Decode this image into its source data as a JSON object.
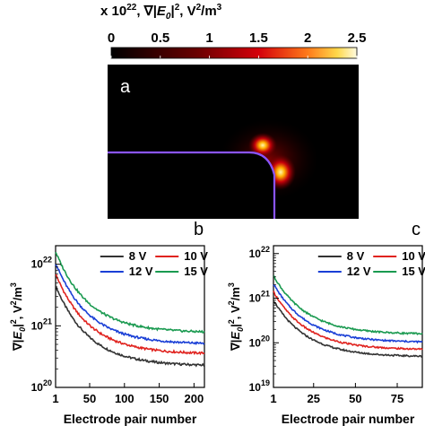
{
  "heatmap": {
    "title_prefix": "x 10",
    "title_exp": "22",
    "title_mid": ", ∇|",
    "title_E": "E",
    "title_sub": "0",
    "title_bar": "|",
    "title_exp2": "2",
    "title_unit": ", V",
    "title_exp3": "2",
    "title_unit2": "/m",
    "title_exp4": "3",
    "colorbar_ticks": [
      "0",
      "0.5",
      "1",
      "1.5",
      "2",
      "2.5"
    ],
    "colorbar_range": [
      0,
      2.5
    ],
    "colors": {
      "low": "#000000",
      "mid": "#d4000b",
      "high": "#fff3a0",
      "edge": "#8a55ff"
    },
    "panel_label": "a"
  },
  "chart_data": [
    {
      "type": "line",
      "panel_label": "b",
      "ylabel": "∇|E0|², V²/m³",
      "xlabel": "Electrode pair number",
      "yscale": "log",
      "xlim": [
        1,
        215
      ],
      "ylim": [
        1e+20,
        2e+22
      ],
      "xticks": [
        "1",
        "50",
        "100",
        "150",
        "200"
      ],
      "xtick_values": [
        1,
        50,
        100,
        150,
        200
      ],
      "yticks": [
        "10^20",
        "10^21",
        "10^22"
      ],
      "legend": "top-right",
      "series": [
        {
          "name": "8 V",
          "color": "#333333",
          "y1": 4.5e+21,
          "yend": 2.3e+20
        },
        {
          "name": "10 V",
          "color": "#e0231f",
          "y1": 7e+21,
          "yend": 3.6e+20
        },
        {
          "name": "12 V",
          "color": "#1a3fd6",
          "y1": 1.05e+22,
          "yend": 5.2e+20
        },
        {
          "name": "15 V",
          "color": "#1a9a50",
          "y1": 1.6e+22,
          "yend": 8e+20
        }
      ]
    },
    {
      "type": "line",
      "panel_label": "c",
      "ylabel": "∇|E0|², V²/m³",
      "xlabel": "Electrode pair number",
      "yscale": "log",
      "xlim": [
        1,
        90
      ],
      "ylim": [
        1e+19,
        1.5e+22
      ],
      "xticks": [
        "1",
        "25",
        "50",
        "75"
      ],
      "xtick_values": [
        1,
        25,
        50,
        75
      ],
      "yticks": [
        "10^19",
        "10^20",
        "10^21",
        "10^22"
      ],
      "legend": "top-right",
      "series": [
        {
          "name": "8 V",
          "color": "#333333",
          "y1": 9e+20,
          "yend": 5e+19
        },
        {
          "name": "10 V",
          "color": "#e0231f",
          "y1": 1.4e+21,
          "yend": 7.2e+19
        },
        {
          "name": "12 V",
          "color": "#1a3fd6",
          "y1": 2.1e+21,
          "yend": 1.05e+20
        },
        {
          "name": "15 V",
          "color": "#1a9a50",
          "y1": 3.2e+21,
          "yend": 1.6e+20
        }
      ]
    }
  ]
}
